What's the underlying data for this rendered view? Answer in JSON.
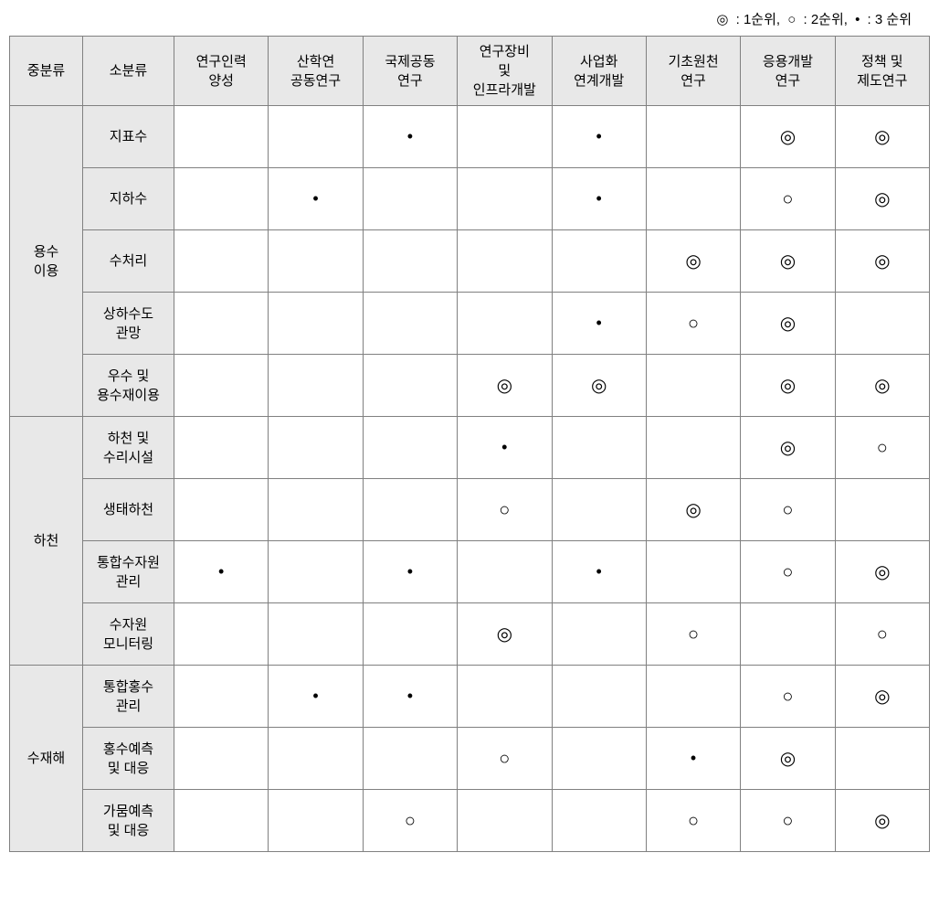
{
  "legend": {
    "rank1": {
      "symbol": "◎",
      "label": ": 1순위,"
    },
    "rank2": {
      "symbol": "○",
      "label": ": 2순위,"
    },
    "rank3": {
      "symbol": "•",
      "label": ": 3 순위"
    }
  },
  "symbols": {
    "rank1": "◎",
    "rank2": "○",
    "rank3": "•"
  },
  "columns": {
    "main": "중분류",
    "sub": "소분류",
    "c1": "연구인력\n양성",
    "c2": "산학연\n공동연구",
    "c3": "국제공동\n연구",
    "c4": "연구장비\n및\n인프라개발",
    "c5": "사업화\n연계개발",
    "c6": "기초원천\n연구",
    "c7": "응용개발\n연구",
    "c8": "정책 및\n제도연구"
  },
  "groups": [
    {
      "name": "용수\n이용",
      "rows": [
        {
          "sub": "지표수",
          "cells": [
            "",
            "",
            "rank3",
            "",
            "rank3",
            "",
            "rank1",
            "rank1"
          ]
        },
        {
          "sub": "지하수",
          "cells": [
            "",
            "rank3",
            "",
            "",
            "rank3",
            "",
            "rank2",
            "rank1"
          ]
        },
        {
          "sub": "수처리",
          "cells": [
            "",
            "",
            "",
            "",
            "",
            "rank1",
            "rank1",
            "rank1"
          ]
        },
        {
          "sub": "상하수도\n관망",
          "cells": [
            "",
            "",
            "",
            "",
            "rank3",
            "rank2",
            "rank1",
            ""
          ]
        },
        {
          "sub": "우수 및\n용수재이용",
          "cells": [
            "",
            "",
            "",
            "rank1",
            "rank1",
            "",
            "rank1",
            "rank1"
          ]
        }
      ]
    },
    {
      "name": "하천",
      "rows": [
        {
          "sub": "하천 및\n수리시설",
          "cells": [
            "",
            "",
            "",
            "rank3",
            "",
            "",
            "rank1",
            "rank2"
          ]
        },
        {
          "sub": "생태하천",
          "cells": [
            "",
            "",
            "",
            "rank2",
            "",
            "rank1",
            "rank2",
            ""
          ]
        },
        {
          "sub": "통합수자원\n관리",
          "cells": [
            "rank3",
            "",
            "rank3",
            "",
            "rank3",
            "",
            "rank2",
            "rank1"
          ]
        },
        {
          "sub": "수자원\n모니터링",
          "cells": [
            "",
            "",
            "",
            "rank1",
            "",
            "rank2",
            "",
            "rank2"
          ]
        }
      ]
    },
    {
      "name": "수재해",
      "rows": [
        {
          "sub": "통합홍수\n관리",
          "cells": [
            "",
            "rank3",
            "rank3",
            "",
            "",
            "",
            "rank2",
            "rank1"
          ]
        },
        {
          "sub": "홍수예측\n및 대응",
          "cells": [
            "",
            "",
            "",
            "rank2",
            "",
            "rank3",
            "rank1",
            ""
          ]
        },
        {
          "sub": "가뭄예측\n및 대응",
          "cells": [
            "",
            "",
            "rank2",
            "",
            "",
            "rank2",
            "rank2",
            "rank1"
          ]
        }
      ]
    }
  ],
  "style": {
    "header_bg": "#e8e8e8",
    "cell_bg": "#ffffff",
    "border_color": "#808080",
    "font_family": "Malgun Gothic",
    "base_fontsize_pt": 11,
    "symbol_fontsize_pt": 14
  }
}
